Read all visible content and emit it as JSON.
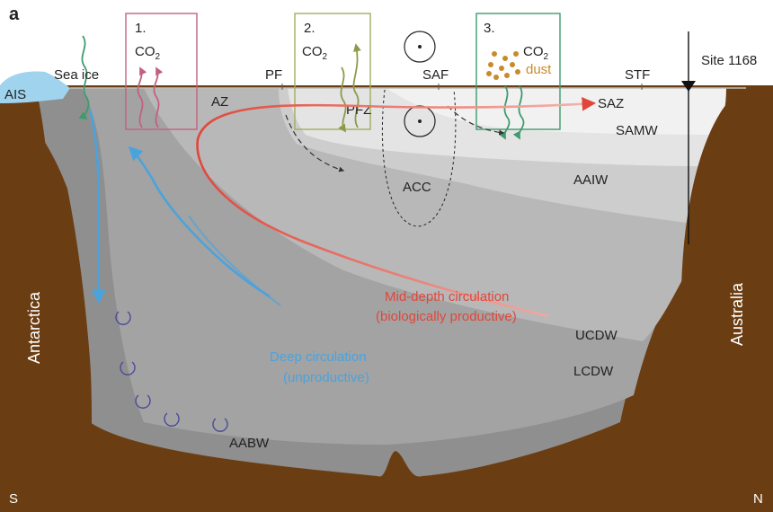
{
  "panel_label": "a",
  "boxes": [
    {
      "number": "1.",
      "co2": "CO",
      "sub": "2",
      "color": "#c2617e"
    },
    {
      "number": "2.",
      "co2": "CO",
      "sub": "2",
      "color": "#a3ad5e"
    },
    {
      "number": "3.",
      "co2": "CO",
      "sub": "2",
      "dust": "dust",
      "color": "#3f9b6f"
    }
  ],
  "fronts": {
    "pf": "PF",
    "saf": "SAF",
    "stf": "STF"
  },
  "site": "Site 1168",
  "zones": {
    "az": "AZ",
    "pfz": "PFZ",
    "saz": "SAZ",
    "acc": "ACC"
  },
  "labels": {
    "ais": "AIS",
    "sea_ice": "Sea ice"
  },
  "water_masses": {
    "samw": "SAMW",
    "aaiw": "AAIW",
    "ucdw": "UCDW",
    "lcdw": "LCDW",
    "aabw": "AABW"
  },
  "circulation": {
    "mid_line1": "Mid-depth circulation",
    "mid_line2": "(biologically productive)",
    "deep_line1": "Deep circulation",
    "deep_line2": "(unproductive)"
  },
  "land": {
    "left": "Antarctica",
    "right": "Australia"
  },
  "directions": {
    "south": "S",
    "north": "N"
  },
  "colors": {
    "sediment": "#6b3d12",
    "ice": "#9fd3ee",
    "mid_arrow": "#e0473b",
    "deep_arrow": "#4aa3dd",
    "dust": "#c98a2b",
    "green_wave": "#3f9b6f",
    "eddy": "#4a4a9a"
  }
}
